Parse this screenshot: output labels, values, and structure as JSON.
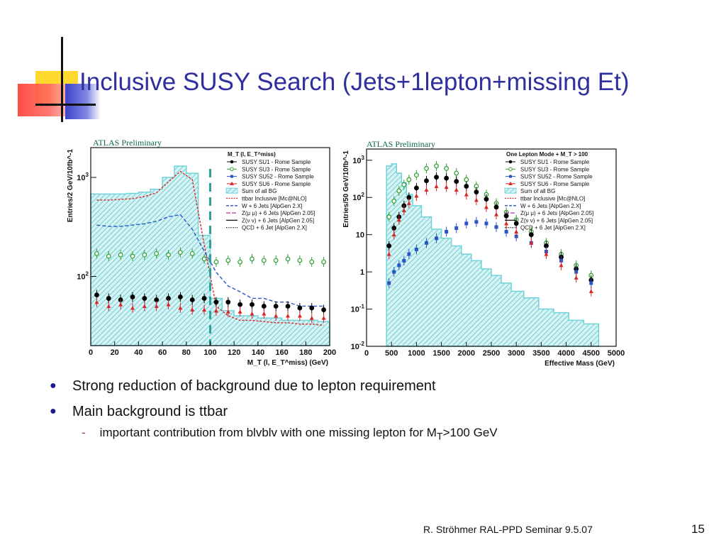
{
  "title": "Inclusive SUSY Search (Jets+1lepton+missing Et)",
  "bullets": [
    "Strong reduction of background due to lepton requirement",
    "Main background is ttbar"
  ],
  "sub_bullet": {
    "text_before": "important contribution from blvblv with one missing lepton for M",
    "subscript": "T",
    "text_after": ">100 GeV"
  },
  "footer": "R. Ströhmer   RAL-PPD Seminar 9.5.07",
  "page_number": "15",
  "colors": {
    "title": "#2f2fa0",
    "bullet": "#1a1a8c",
    "atlas": "#0b6b42",
    "sum_bg": "#6fd3d8",
    "su1": "#000000",
    "su3": "#2ca02c",
    "su52": "#2a55c4",
    "su6": "#d62728",
    "ttbar": "#d62728",
    "w6j": "#2a55c4",
    "zmumu": "#c0339e"
  },
  "chart_data": [
    {
      "type": "area",
      "label": "ATLAS Preliminary",
      "xlabel": "M_T (l, E_T^miss) (GeV)",
      "ylabel": "Entries/2 GeV/10fb^-1",
      "xlim": [
        0,
        200
      ],
      "ylog": true,
      "ylim": [
        20,
        2000
      ],
      "xticks": [
        "0",
        "20",
        "40",
        "60",
        "80",
        "100",
        "120",
        "140",
        "160",
        "180",
        "200"
      ],
      "yticks": [
        "10^2",
        "10^3"
      ],
      "cut_line_x": 100,
      "legend_header": "M_T (l, E_T^miss)",
      "legend": [
        "SUSY SU1 - Rome Sample",
        "SUSY SU3 - Rome Sample",
        "SUSY SU52 - Rome Sample",
        "SUSY SU6 - Rome Sample",
        "Sum of all BG",
        "ttbar Inclusive [Mc@NLO]",
        "W + 6 Jets [AlpGen 2.X]",
        "Z(μ μ) + 6 Jets [AlpGen 2.05]",
        "Z(ν ν) + 6 Jets [AlpGen 2.05]",
        "QCD + 6 Jet [AlpGen 2.X]"
      ],
      "x": [
        5,
        15,
        25,
        35,
        45,
        55,
        65,
        75,
        85,
        95,
        105,
        115,
        125,
        135,
        145,
        155,
        165,
        175,
        185,
        195
      ],
      "series": [
        {
          "name": "Sum of all BG",
          "values": [
            680,
            680,
            680,
            690,
            710,
            760,
            1000,
            1300,
            1100,
            260,
            60,
            45,
            40,
            40,
            38,
            38,
            36,
            36,
            36,
            35
          ]
        },
        {
          "name": "ttbar Inclusive [Mc@NLO]",
          "values": [
            590,
            590,
            600,
            610,
            640,
            700,
            900,
            1150,
            950,
            210,
            50,
            40,
            36,
            36,
            35,
            34,
            34,
            33,
            33,
            32
          ]
        },
        {
          "name": "W + 6 Jets [AlpGen 2.X]",
          "values": [
            330,
            320,
            320,
            330,
            340,
            360,
            400,
            420,
            300,
            180,
            110,
            80,
            70,
            60,
            60,
            55,
            55,
            50,
            50,
            50
          ]
        },
        {
          "name": "SUSY SU3 - Rome Sample",
          "values": [
            170,
            160,
            165,
            160,
            165,
            170,
            165,
            175,
            170,
            150,
            140,
            145,
            140,
            150,
            145,
            145,
            150,
            145,
            140,
            140
          ]
        },
        {
          "name": "SUSY SU1 - Rome Sample",
          "values": [
            65,
            60,
            58,
            62,
            60,
            58,
            60,
            62,
            58,
            60,
            55,
            55,
            52,
            52,
            50,
            50,
            50,
            48,
            48,
            46
          ]
        },
        {
          "name": "SUSY SU6 - Rome Sample",
          "values": [
            55,
            50,
            52,
            48,
            50,
            50,
            52,
            48,
            46,
            46,
            45,
            44,
            44,
            42,
            42,
            40,
            40,
            40,
            38,
            38
          ]
        }
      ]
    },
    {
      "type": "area",
      "label": "ATLAS Preliminary",
      "xlabel": "Effective Mass (GeV)",
      "ylabel": "Entries/50 GeV/10fb^-1",
      "xlim": [
        0,
        5000
      ],
      "ylog": true,
      "ylim": [
        0.01,
        2000
      ],
      "xticks": [
        "0",
        "500",
        "1000",
        "1500",
        "2000",
        "2500",
        "3000",
        "3500",
        "4000",
        "4500",
        "5000"
      ],
      "yticks": [
        "10^-2",
        "10^-1",
        "1",
        "10",
        "10^2",
        "10^3"
      ],
      "legend_header": "One Lepton Mode + M_T > 100",
      "legend": [
        "SUSY SU1 - Rome Sample",
        "SUSY SU3 - Rome Sample",
        "SUSY SU52 - Rome Sample",
        "SUSY SU6 - Rome Sample",
        "Sum of all BG",
        "ttbar Inclusive [Mc@NLO]",
        "W + 6 Jets [AlpGen 2.X]",
        "Z(μ μ) + 6 Jets [AlpGen 2.05]",
        "Z(ν ν) + 6 Jets [AlpGen 2.05]",
        "QCD + 6 Jet [AlpGen 2.X]"
      ],
      "x": [
        450,
        550,
        650,
        750,
        850,
        1000,
        1200,
        1400,
        1600,
        1800,
        2000,
        2200,
        2400,
        2600,
        2800,
        3000,
        3300,
        3600,
        3900,
        4200,
        4500
      ],
      "series": [
        {
          "name": "Sum of all BG",
          "values": [
            700,
            800,
            450,
            250,
            120,
            60,
            30,
            14,
            8,
            5,
            3,
            2,
            1.2,
            0.8,
            0.5,
            0.3,
            0.2,
            0.1,
            0.08,
            0.05,
            0.04
          ]
        },
        {
          "name": "SUSY SU3 - Rome Sample",
          "values": [
            30,
            80,
            150,
            220,
            300,
            400,
            600,
            700,
            600,
            450,
            300,
            200,
            120,
            70,
            40,
            25,
            12,
            6,
            3,
            1.5,
            0.8
          ]
        },
        {
          "name": "SUSY SU1 - Rome Sample",
          "values": [
            5,
            15,
            30,
            60,
            100,
            180,
            280,
            350,
            330,
            270,
            200,
            140,
            90,
            55,
            32,
            20,
            10,
            5,
            2.5,
            1.2,
            0.6
          ]
        },
        {
          "name": "SUSY SU52 - Rome Sample",
          "values": [
            0.5,
            1,
            1.5,
            2,
            3,
            4,
            6,
            8,
            12,
            15,
            20,
            22,
            20,
            16,
            12,
            9,
            6,
            3.5,
            2,
            1,
            0.5
          ]
        },
        {
          "name": "SUSY SU6 - Rome Sample",
          "values": [
            3,
            10,
            25,
            45,
            70,
            110,
            160,
            200,
            190,
            160,
            120,
            85,
            55,
            35,
            20,
            12,
            6,
            3,
            1.5,
            0.7,
            0.3
          ]
        }
      ]
    }
  ]
}
